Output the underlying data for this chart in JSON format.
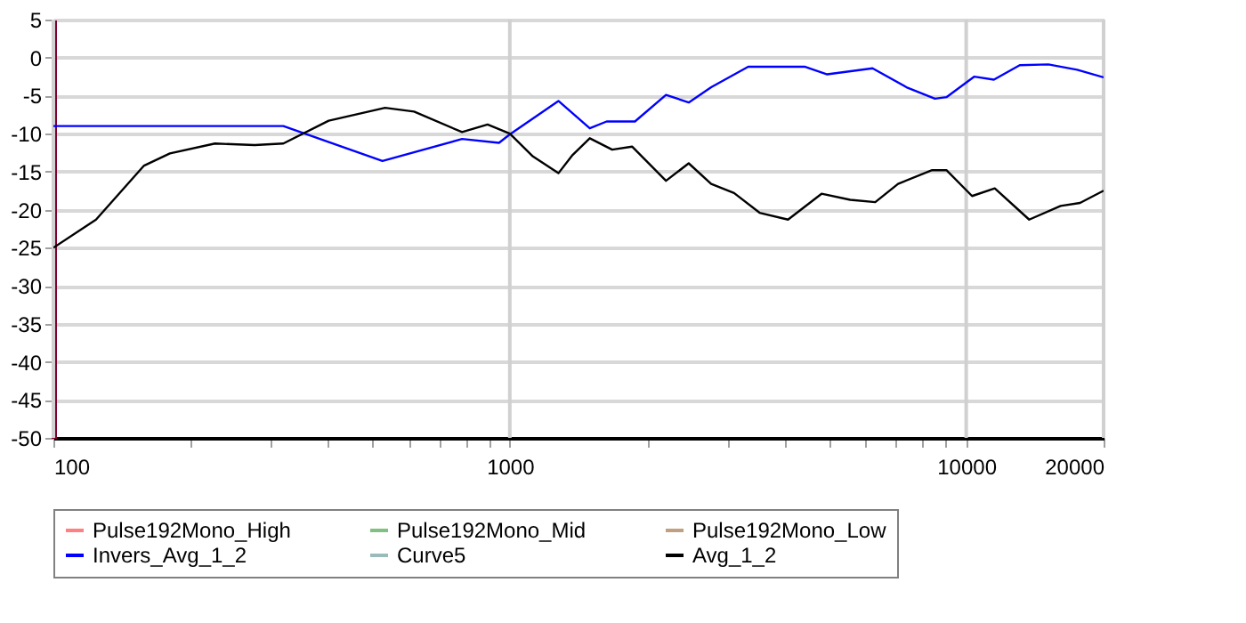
{
  "chart_data": {
    "type": "line",
    "log": "x",
    "grid": true,
    "legend": "bottom",
    "line_style": "solid",
    "marker": "none",
    "xlim": [
      100,
      20000
    ],
    "ylim": [
      -50,
      5
    ],
    "xticks": [
      100,
      {
        "value": 200,
        "label": null
      },
      {
        "value": 300,
        "label": null
      },
      {
        "value": 400,
        "label": null
      },
      {
        "value": 500,
        "label": null
      },
      {
        "value": 600,
        "label": null
      },
      {
        "value": 700,
        "label": null
      },
      {
        "value": 800,
        "label": null
      },
      {
        "value": 900,
        "label": null
      },
      1000,
      {
        "value": 2000,
        "label": null
      },
      {
        "value": 3000,
        "label": null
      },
      {
        "value": 4000,
        "label": null
      },
      {
        "value": 5000,
        "label": null
      },
      {
        "value": 6000,
        "label": null
      },
      {
        "value": 7000,
        "label": null
      },
      {
        "value": 8000,
        "label": null
      },
      {
        "value": 9000,
        "label": null
      },
      10000,
      20000
    ],
    "yticks": [
      5,
      0,
      -5,
      -10,
      -15,
      -20,
      -25,
      -30,
      -35,
      -40,
      -45,
      -50
    ],
    "series": [
      {
        "name": "Pulse192Mono_High",
        "color": "#ff8080"
      },
      {
        "name": "Pulse192Mono_Mid",
        "color": "#80c080"
      },
      {
        "name": "Pulse192Mono_Low",
        "color": "#c0a080"
      },
      {
        "name": "Invers_Avg_1_2",
        "color": "#0000ff",
        "x": [
          100,
          319,
          526,
          786,
          947,
          1000,
          1278,
          1497,
          1630,
          1880,
          2199,
          2466,
          2762,
          3329,
          4425,
          4960,
          6234,
          7400,
          8540,
          9050,
          10420,
          11500,
          13100,
          15140,
          17500,
          20000
        ],
        "values": [
          -9,
          -9,
          -13.6,
          -10.7,
          -11.2,
          -10.1,
          -5.7,
          -9.3,
          -8.4,
          -8.4,
          -4.9,
          -5.9,
          -3.9,
          -1.2,
          -1.2,
          -2.2,
          -1.4,
          -3.9,
          -5.4,
          -5.2,
          -2.5,
          -2.9,
          -1.0,
          -0.9,
          -1.6,
          -2.6
        ]
      },
      {
        "name": "Curve5",
        "color": "#99bbbb"
      },
      {
        "name": "Avg_1_2",
        "color": "#000000",
        "x": [
          100,
          124,
          158,
          180,
          226,
          276,
          319,
          401,
          533,
          617,
          786,
          894,
          1000,
          1124,
          1278,
          1373,
          1497,
          1676,
          1853,
          2199,
          2466,
          2762,
          3100,
          3526,
          4070,
          4820,
          5570,
          6320,
          7090,
          8420,
          9050,
          10300,
          11550,
          13740,
          16100,
          17760,
          20000
        ],
        "values": [
          -25.0,
          -21.3,
          -14.2,
          -12.6,
          -11.3,
          -11.5,
          -11.3,
          -8.3,
          -6.6,
          -7.1,
          -9.8,
          -8.8,
          -10.0,
          -13.0,
          -15.2,
          -12.8,
          -10.6,
          -12.1,
          -11.7,
          -16.2,
          -13.9,
          -16.6,
          -17.8,
          -20.4,
          -21.3,
          -17.9,
          -18.7,
          -19.0,
          -16.6,
          -14.8,
          -14.8,
          -18.2,
          -17.2,
          -21.3,
          -19.5,
          -19.1,
          -17.5
        ]
      }
    ]
  }
}
